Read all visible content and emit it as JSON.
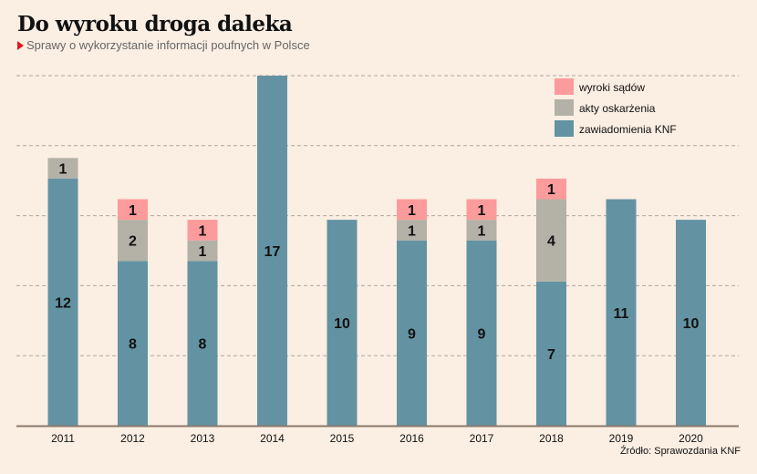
{
  "title": "Do wyroku droga daleka",
  "subtitle": "Sprawy o wykorzystanie informacji poufnych w Polsce",
  "source": "Źródło: Sprawozdania KNF",
  "chart_data": {
    "type": "bar",
    "stacked": true,
    "title": "Do wyroku droga daleka",
    "subtitle": "Sprawy o wykorzystanie informacji poufnych w Polsce",
    "xlabel": "",
    "ylabel": "",
    "ylim": [
      0,
      17
    ],
    "grid": true,
    "legend_position": "top-right",
    "categories": [
      "2011",
      "2012",
      "2013",
      "2014",
      "2015",
      "2016",
      "2017",
      "2018",
      "2019",
      "2020"
    ],
    "series": [
      {
        "name": "zawiadomienia KNF",
        "color": "#6393a3",
        "values": [
          12,
          8,
          8,
          17,
          10,
          9,
          9,
          7,
          11,
          10
        ]
      },
      {
        "name": "akty oskarżenia",
        "color": "#b4b1a6",
        "values": [
          1,
          2,
          1,
          0,
          0,
          1,
          1,
          4,
          0,
          0
        ]
      },
      {
        "name": "wyroki sądów",
        "color": "#fc9b9b",
        "values": [
          0,
          1,
          1,
          0,
          0,
          1,
          1,
          1,
          0,
          0
        ]
      }
    ],
    "legend": [
      "wyroki sądów",
      "akty oskarżenia",
      "zawiadomienia KNF"
    ]
  }
}
